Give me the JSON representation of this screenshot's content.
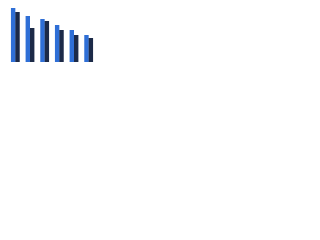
{
  "chart_data": {
    "type": "bar",
    "categories": [
      null,
      null,
      null,
      null,
      null,
      null
    ],
    "series": [
      {
        "color": "#2f6fd6",
        "values": [
          54,
          46,
          43,
          37,
          32,
          27
        ]
      },
      {
        "color": "#1c2a48",
        "values": [
          50,
          34,
          41,
          32,
          27,
          24
        ]
      }
    ],
    "ylim": [
      0,
      60
    ]
  }
}
